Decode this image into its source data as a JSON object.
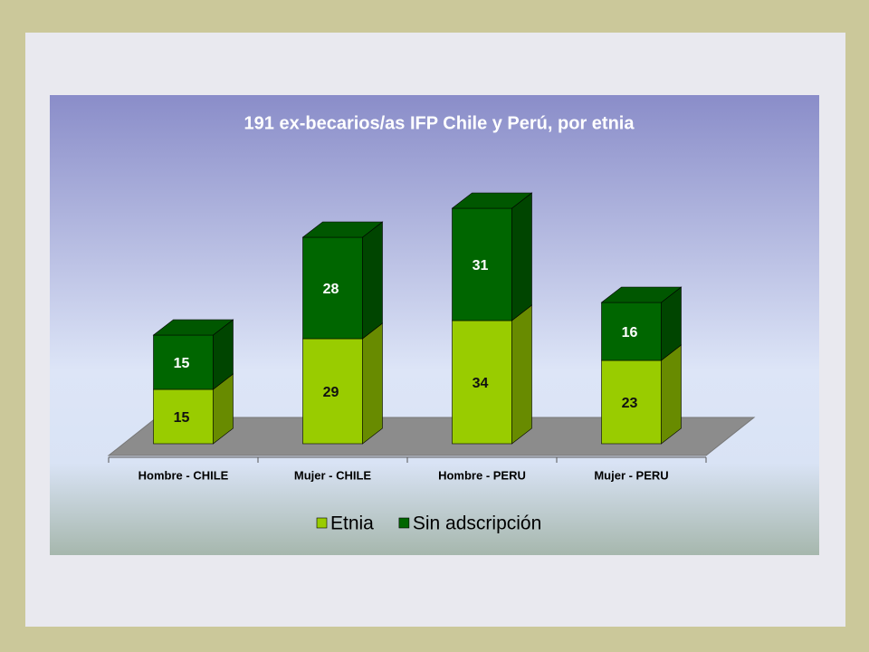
{
  "chart_data": {
    "type": "bar3d_stacked",
    "title": "191 ex-becarios/as IFP Chile y Perú, por etnia",
    "categories": [
      "Hombre - CHILE",
      "Mujer - CHILE",
      "Hombre - PERU",
      "Mujer - PERU"
    ],
    "series": [
      {
        "name": "Etnia",
        "color": "#99cc00",
        "values": [
          15,
          29,
          34,
          23
        ]
      },
      {
        "name": "Sin adscripción",
        "color": "#006600",
        "values": [
          15,
          28,
          31,
          16
        ]
      }
    ],
    "legend": "bottom"
  }
}
